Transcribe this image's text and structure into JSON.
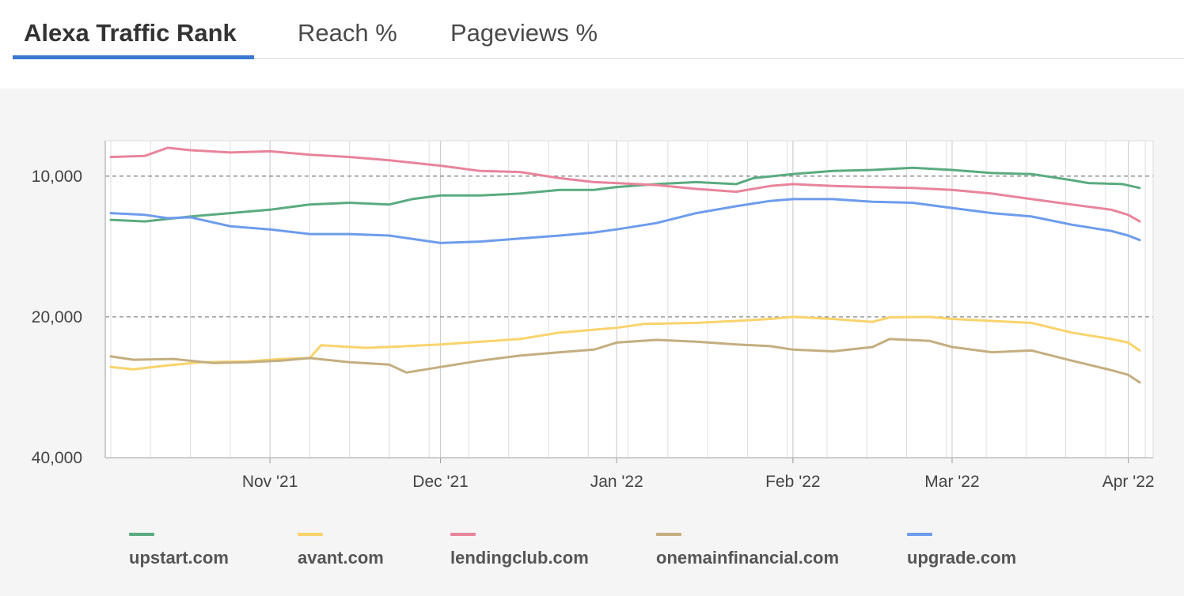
{
  "tabs": [
    {
      "label": "Alexa Traffic Rank",
      "active": true
    },
    {
      "label": "Reach %",
      "active": false
    },
    {
      "label": "Pageviews %",
      "active": false
    }
  ],
  "chart_data": {
    "type": "line",
    "y_scale": "log",
    "y_inverted": true,
    "ylim": [
      8400,
      40000
    ],
    "y_ticks": [
      {
        "value": 10000,
        "label": "10,000",
        "dashed_gridline": true
      },
      {
        "value": 20000,
        "label": "20,000",
        "dashed_gridline": true
      },
      {
        "value": 40000,
        "label": "40,000",
        "dashed_gridline": false
      }
    ],
    "x_start": "2021-10-04",
    "x_end": "2022-04-03",
    "x_ticks": [
      {
        "date": "2021-11-01",
        "label": "Nov '21"
      },
      {
        "date": "2021-12-01",
        "label": "Dec '21"
      },
      {
        "date": "2022-01-01",
        "label": "Jan '22"
      },
      {
        "date": "2022-02-01",
        "label": "Feb '22"
      },
      {
        "date": "2022-03-01",
        "label": "Mar '22"
      },
      {
        "date": "2022-04-01",
        "label": "Apr '22"
      }
    ],
    "grid": "vertical lines weekly",
    "legend_position": "bottom",
    "series": [
      {
        "name": "upstart.com",
        "color": "#5aab7f",
        "points": [
          [
            "2021-10-04",
            12400
          ],
          [
            "2021-10-10",
            12500
          ],
          [
            "2021-10-18",
            12200
          ],
          [
            "2021-10-25",
            12000
          ],
          [
            "2021-11-01",
            11800
          ],
          [
            "2021-11-08",
            11500
          ],
          [
            "2021-11-15",
            11400
          ],
          [
            "2021-11-22",
            11500
          ],
          [
            "2021-11-26",
            11200
          ],
          [
            "2021-12-01",
            11000
          ],
          [
            "2021-12-08",
            11000
          ],
          [
            "2021-12-15",
            10900
          ],
          [
            "2021-12-22",
            10700
          ],
          [
            "2021-12-28",
            10700
          ],
          [
            "2022-01-01",
            10550
          ],
          [
            "2022-01-08",
            10400
          ],
          [
            "2022-01-15",
            10300
          ],
          [
            "2022-01-22",
            10400
          ],
          [
            "2022-01-25",
            10100
          ],
          [
            "2022-02-01",
            9900
          ],
          [
            "2022-02-08",
            9750
          ],
          [
            "2022-02-15",
            9700
          ],
          [
            "2022-02-22",
            9600
          ],
          [
            "2022-03-01",
            9700
          ],
          [
            "2022-03-08",
            9850
          ],
          [
            "2022-03-15",
            9900
          ],
          [
            "2022-03-22",
            10200
          ],
          [
            "2022-03-25",
            10350
          ],
          [
            "2022-03-31",
            10400
          ],
          [
            "2022-04-03",
            10600
          ]
        ]
      },
      {
        "name": "avant.com",
        "color": "#f9d36c",
        "points": [
          [
            "2021-10-04",
            25600
          ],
          [
            "2021-10-08",
            25900
          ],
          [
            "2021-10-14",
            25400
          ],
          [
            "2021-10-20",
            25000
          ],
          [
            "2021-10-28",
            24900
          ],
          [
            "2021-11-03",
            24600
          ],
          [
            "2021-11-08",
            24500
          ],
          [
            "2021-11-10",
            23000
          ],
          [
            "2021-11-18",
            23300
          ],
          [
            "2021-11-25",
            23100
          ],
          [
            "2021-12-01",
            22900
          ],
          [
            "2021-12-08",
            22600
          ],
          [
            "2021-12-15",
            22300
          ],
          [
            "2021-12-22",
            21600
          ],
          [
            "2021-12-28",
            21300
          ],
          [
            "2022-01-01",
            21100
          ],
          [
            "2022-01-06",
            20700
          ],
          [
            "2022-01-15",
            20600
          ],
          [
            "2022-01-22",
            20400
          ],
          [
            "2022-01-28",
            20200
          ],
          [
            "2022-02-01",
            20000
          ],
          [
            "2022-02-08",
            20200
          ],
          [
            "2022-02-15",
            20500
          ],
          [
            "2022-02-18",
            20050
          ],
          [
            "2022-02-25",
            20000
          ],
          [
            "2022-03-01",
            20200
          ],
          [
            "2022-03-08",
            20400
          ],
          [
            "2022-03-15",
            20600
          ],
          [
            "2022-03-22",
            21600
          ],
          [
            "2022-03-29",
            22300
          ],
          [
            "2022-04-01",
            22700
          ],
          [
            "2022-04-03",
            23600
          ]
        ]
      },
      {
        "name": "lendingclub.com",
        "color": "#e8849b",
        "points": [
          [
            "2021-10-04",
            9100
          ],
          [
            "2021-10-10",
            9050
          ],
          [
            "2021-10-14",
            8700
          ],
          [
            "2021-10-18",
            8800
          ],
          [
            "2021-10-25",
            8900
          ],
          [
            "2021-11-01",
            8850
          ],
          [
            "2021-11-08",
            9000
          ],
          [
            "2021-11-15",
            9100
          ],
          [
            "2021-11-22",
            9250
          ],
          [
            "2021-12-01",
            9500
          ],
          [
            "2021-12-08",
            9750
          ],
          [
            "2021-12-15",
            9800
          ],
          [
            "2021-12-22",
            10100
          ],
          [
            "2021-12-28",
            10300
          ],
          [
            "2022-01-01",
            10350
          ],
          [
            "2022-01-08",
            10450
          ],
          [
            "2022-01-15",
            10650
          ],
          [
            "2022-01-22",
            10800
          ],
          [
            "2022-01-28",
            10500
          ],
          [
            "2022-02-01",
            10400
          ],
          [
            "2022-02-08",
            10500
          ],
          [
            "2022-02-15",
            10550
          ],
          [
            "2022-02-22",
            10600
          ],
          [
            "2022-03-01",
            10700
          ],
          [
            "2022-03-08",
            10900
          ],
          [
            "2022-03-15",
            11200
          ],
          [
            "2022-03-22",
            11500
          ],
          [
            "2022-03-29",
            11800
          ],
          [
            "2022-04-01",
            12100
          ],
          [
            "2022-04-03",
            12500
          ]
        ]
      },
      {
        "name": "onemainfinancial.com",
        "color": "#c4ae80",
        "points": [
          [
            "2021-10-04",
            24300
          ],
          [
            "2021-10-08",
            24700
          ],
          [
            "2021-10-15",
            24600
          ],
          [
            "2021-10-22",
            25100
          ],
          [
            "2021-10-28",
            25000
          ],
          [
            "2021-11-03",
            24800
          ],
          [
            "2021-11-08",
            24500
          ],
          [
            "2021-11-15",
            25000
          ],
          [
            "2021-11-22",
            25300
          ],
          [
            "2021-11-25",
            26300
          ],
          [
            "2021-12-01",
            25600
          ],
          [
            "2021-12-08",
            24800
          ],
          [
            "2021-12-15",
            24200
          ],
          [
            "2021-12-22",
            23800
          ],
          [
            "2021-12-28",
            23500
          ],
          [
            "2022-01-01",
            22700
          ],
          [
            "2022-01-08",
            22400
          ],
          [
            "2022-01-15",
            22600
          ],
          [
            "2022-01-22",
            22900
          ],
          [
            "2022-01-28",
            23100
          ],
          [
            "2022-02-01",
            23500
          ],
          [
            "2022-02-08",
            23700
          ],
          [
            "2022-02-15",
            23200
          ],
          [
            "2022-02-18",
            22300
          ],
          [
            "2022-02-25",
            22500
          ],
          [
            "2022-03-01",
            23200
          ],
          [
            "2022-03-08",
            23800
          ],
          [
            "2022-03-15",
            23600
          ],
          [
            "2022-03-22",
            24800
          ],
          [
            "2022-03-29",
            26000
          ],
          [
            "2022-04-01",
            26600
          ],
          [
            "2022-04-03",
            27600
          ]
        ]
      },
      {
        "name": "upgrade.com",
        "color": "#6d9cec",
        "points": [
          [
            "2021-10-04",
            12000
          ],
          [
            "2021-10-10",
            12100
          ],
          [
            "2021-10-14",
            12300
          ],
          [
            "2021-10-18",
            12250
          ],
          [
            "2021-10-25",
            12800
          ],
          [
            "2021-11-01",
            13000
          ],
          [
            "2021-11-08",
            13300
          ],
          [
            "2021-11-15",
            13300
          ],
          [
            "2021-11-22",
            13400
          ],
          [
            "2021-12-01",
            13900
          ],
          [
            "2021-12-08",
            13800
          ],
          [
            "2021-12-15",
            13600
          ],
          [
            "2021-12-22",
            13400
          ],
          [
            "2021-12-28",
            13200
          ],
          [
            "2022-01-01",
            13000
          ],
          [
            "2022-01-08",
            12600
          ],
          [
            "2022-01-15",
            12000
          ],
          [
            "2022-01-22",
            11600
          ],
          [
            "2022-01-28",
            11300
          ],
          [
            "2022-02-01",
            11200
          ],
          [
            "2022-02-08",
            11200
          ],
          [
            "2022-02-15",
            11350
          ],
          [
            "2022-02-22",
            11400
          ],
          [
            "2022-03-01",
            11700
          ],
          [
            "2022-03-08",
            12000
          ],
          [
            "2022-03-15",
            12200
          ],
          [
            "2022-03-22",
            12700
          ],
          [
            "2022-03-29",
            13100
          ],
          [
            "2022-04-01",
            13400
          ],
          [
            "2022-04-03",
            13700
          ]
        ]
      }
    ]
  },
  "legend": [
    {
      "label": "upstart.com",
      "color": "#5aab7f"
    },
    {
      "label": "avant.com",
      "color": "#f9d36c"
    },
    {
      "label": "lendingclub.com",
      "color": "#e8849b"
    },
    {
      "label": "onemainfinancial.com",
      "color": "#c4ae80"
    },
    {
      "label": "upgrade.com",
      "color": "#6d9cec"
    }
  ]
}
